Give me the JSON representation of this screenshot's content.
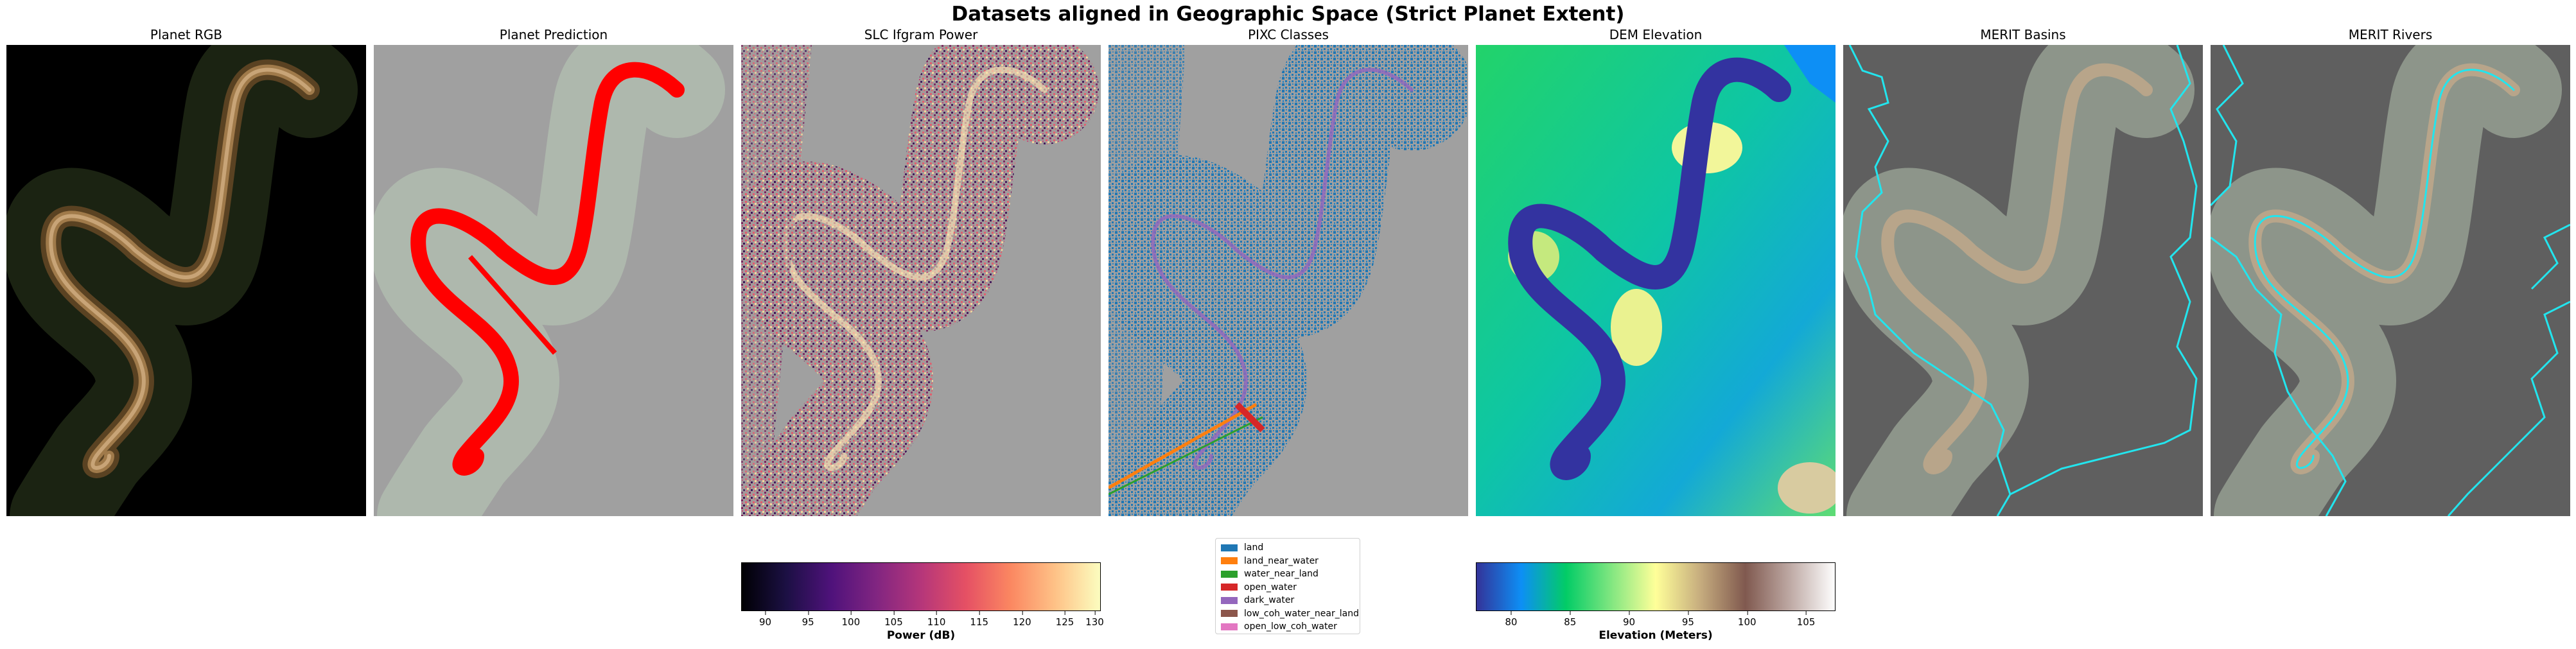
{
  "figure": {
    "title": "Datasets aligned in Geographic Space (Strict Planet Extent)"
  },
  "panels": [
    {
      "title": "Planet RGB",
      "icon": "satellite-image"
    },
    {
      "title": "Planet Prediction",
      "icon": "water-mask"
    },
    {
      "title": "SLC Ifgram Power",
      "icon": "power-raster"
    },
    {
      "title": "PIXC Classes",
      "icon": "class-raster"
    },
    {
      "title": "DEM Elevation",
      "icon": "elevation-raster"
    },
    {
      "title": "MERIT Basins",
      "icon": "basin-outlines"
    },
    {
      "title": "MERIT Rivers",
      "icon": "river-lines"
    }
  ],
  "power_colorbar": {
    "label": "Power (dB)",
    "ticks": [
      "90",
      "95",
      "100",
      "105",
      "110",
      "115",
      "120",
      "125",
      "130"
    ],
    "range": [
      89.5,
      131.5
    ],
    "colormap": "magma"
  },
  "elevation_colorbar": {
    "label": "Elevation (Meters)",
    "ticks": [
      "80",
      "85",
      "90",
      "95",
      "100",
      "105"
    ],
    "range": [
      77.0,
      107.5
    ],
    "colormap": "terrain"
  },
  "pixc_legend": {
    "items": [
      {
        "label": "land",
        "color": "#1f77b4"
      },
      {
        "label": "land_near_water",
        "color": "#ff7f0e"
      },
      {
        "label": "water_near_land",
        "color": "#2ca02c"
      },
      {
        "label": "open_water",
        "color": "#d62728"
      },
      {
        "label": "dark_water",
        "color": "#9467bd"
      },
      {
        "label": "low_coh_water_near_land",
        "color": "#8c564b"
      },
      {
        "label": "open_low_coh_water",
        "color": "#e377c2"
      }
    ]
  },
  "colors": {
    "prediction_water": "#ff0000",
    "basin_outline": "#22e5ee",
    "river_line": "#22e5ee",
    "no_data_gray": "#a0a0a0",
    "dem_water": "#3333a0"
  }
}
